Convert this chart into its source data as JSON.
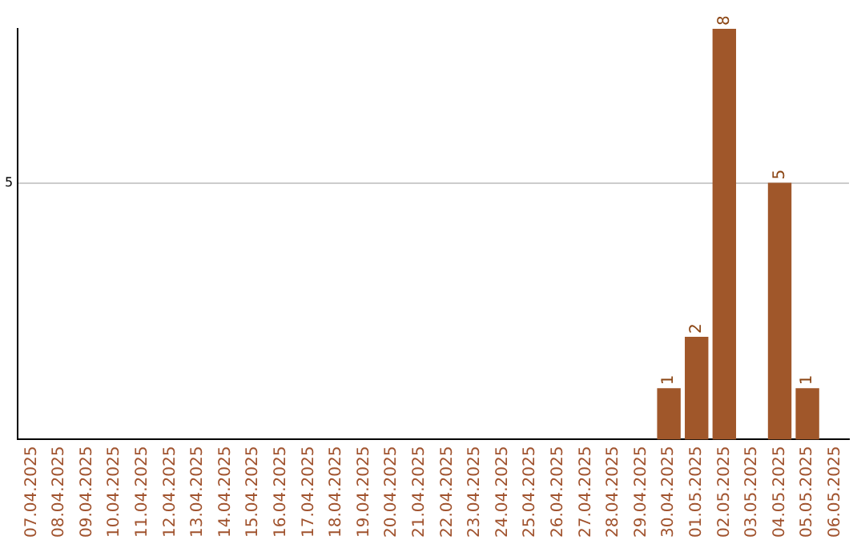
{
  "chart_data": {
    "type": "bar",
    "categories": [
      "07.04.2025",
      "08.04.2025",
      "09.04.2025",
      "10.04.2025",
      "11.04.2025",
      "12.04.2025",
      "13.04.2025",
      "14.04.2025",
      "15.04.2025",
      "16.04.2025",
      "17.04.2025",
      "18.04.2025",
      "19.04.2025",
      "20.04.2025",
      "21.04.2025",
      "22.04.2025",
      "23.04.2025",
      "24.04.2025",
      "25.04.2025",
      "26.04.2025",
      "27.04.2025",
      "28.04.2025",
      "29.04.2025",
      "30.04.2025",
      "01.05.2025",
      "02.05.2025",
      "03.05.2025",
      "04.05.2025",
      "05.05.2025",
      "06.05.2025"
    ],
    "values": [
      null,
      null,
      null,
      null,
      null,
      null,
      null,
      null,
      null,
      null,
      null,
      null,
      null,
      null,
      null,
      null,
      null,
      null,
      null,
      null,
      null,
      null,
      null,
      1,
      2,
      8,
      null,
      5,
      1,
      null
    ],
    "color": "#a0572a",
    "ylim": [
      0,
      8
    ],
    "yticks": [
      5
    ],
    "grid": "y",
    "data_labels": true
  }
}
